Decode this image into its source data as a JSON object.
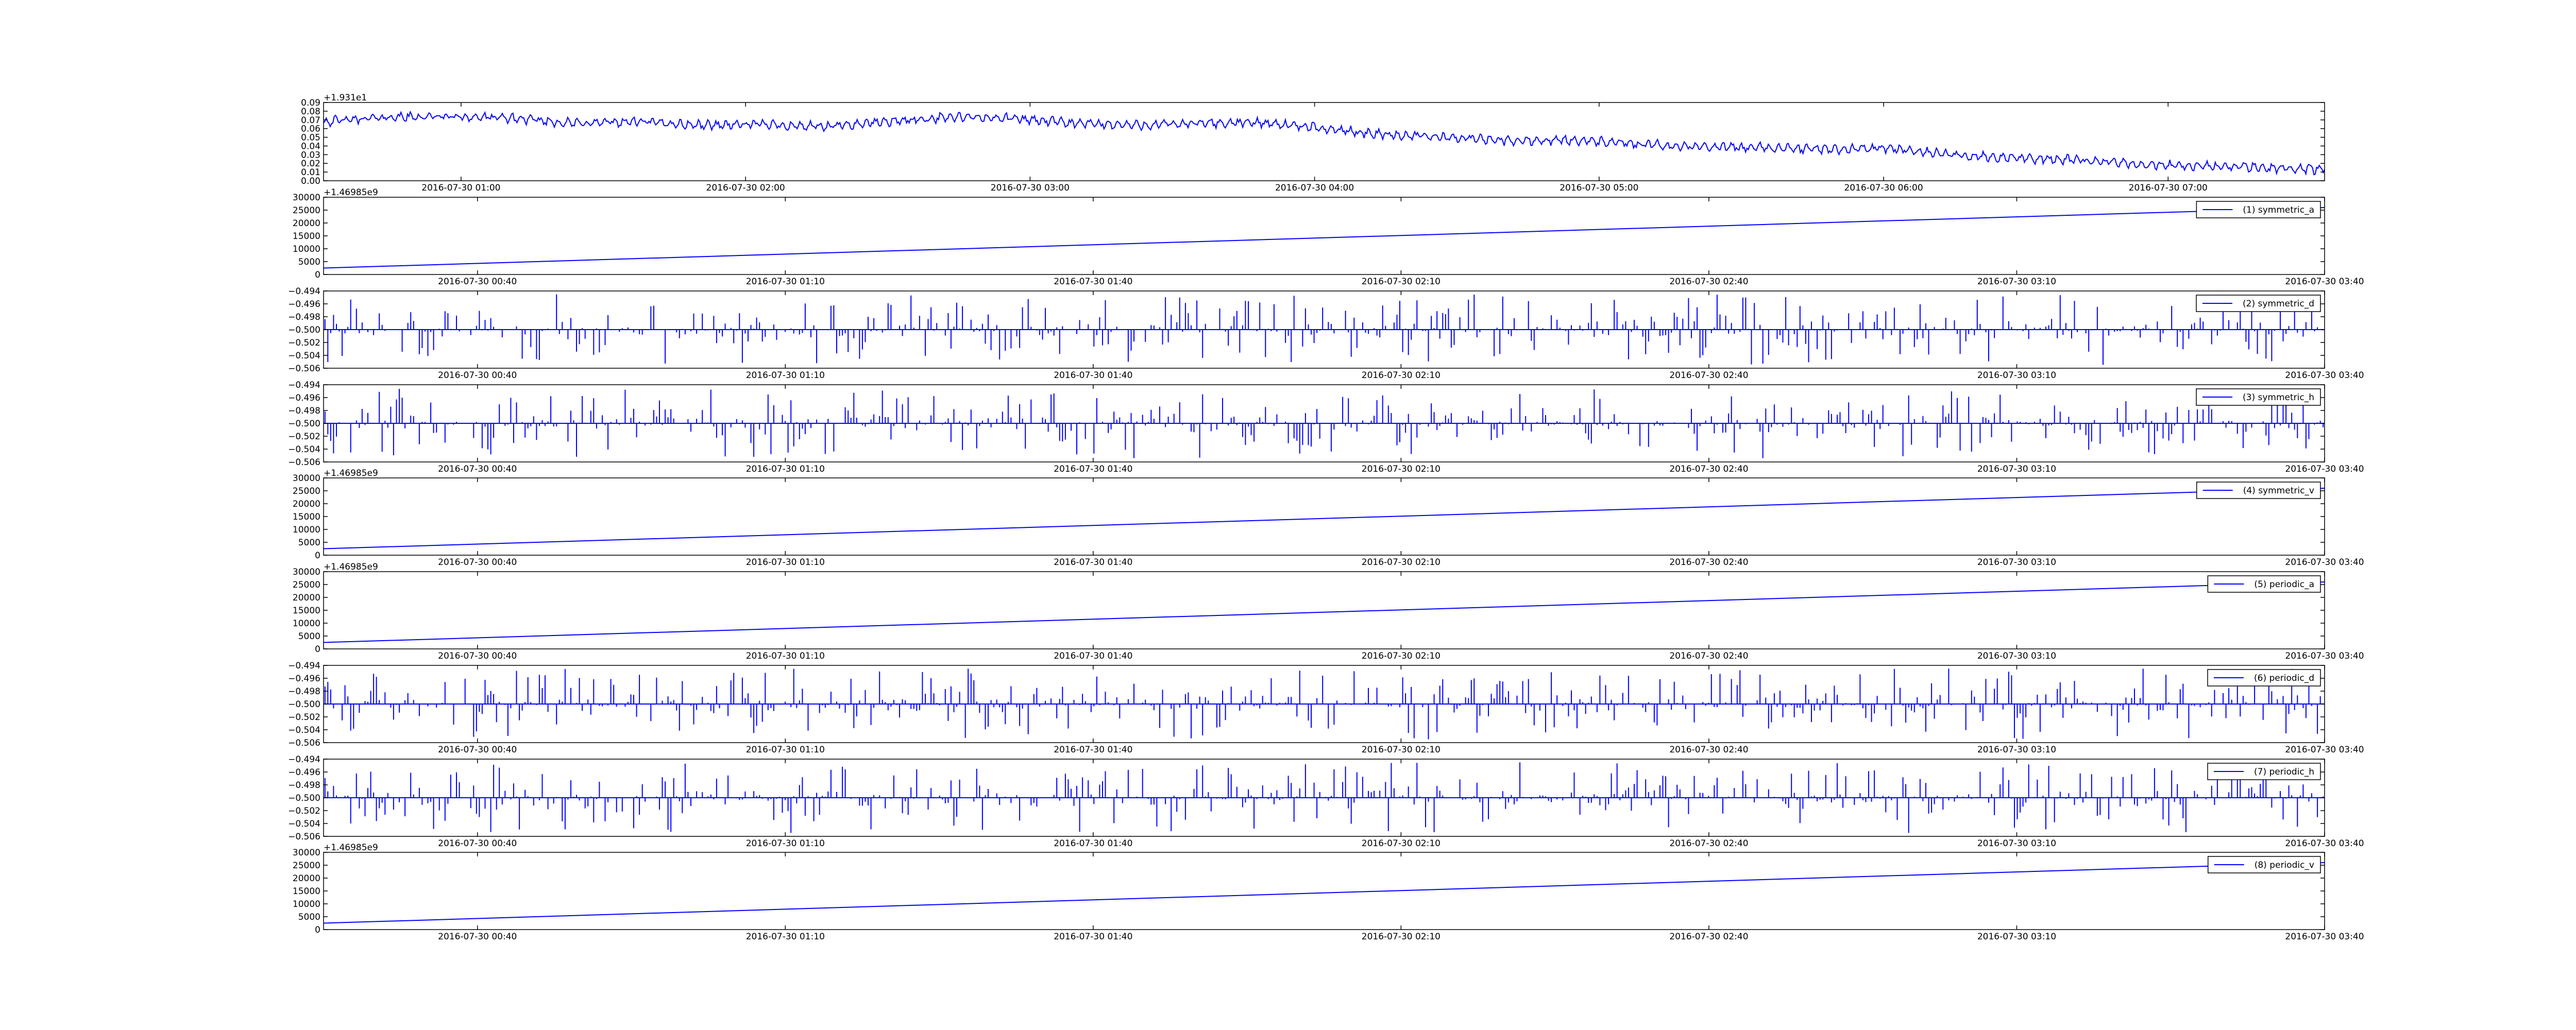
{
  "figure": {
    "background": "#ffffff",
    "line_color": "#0000ff",
    "axes_color": "#000000",
    "legend_border": "#000000"
  },
  "chart_data": [
    {
      "type": "line",
      "title": "",
      "xlabel": "",
      "ylabel": "",
      "offset_text": "+1.931e1",
      "x_range": [
        "2016-07-30 00:31",
        "2016-07-30 07:33"
      ],
      "xticks": [
        "2016-07-30 01:00",
        "2016-07-30 02:00",
        "2016-07-30 03:00",
        "2016-07-30 04:00",
        "2016-07-30 05:00",
        "2016-07-30 06:00",
        "2016-07-30 07:00"
      ],
      "ylim": [
        0.0,
        0.09
      ],
      "yticks": [
        "0.00",
        "0.01",
        "0.02",
        "0.03",
        "0.04",
        "0.05",
        "0.06",
        "0.07",
        "0.08",
        "0.09"
      ],
      "grid": false,
      "series": [
        {
          "values": [
            0.068,
            0.073,
            0.074,
            0.072,
            0.066,
            0.068,
            0.064,
            0.065,
            0.062,
            0.068,
            0.073,
            0.072,
            0.066,
            0.064,
            0.066,
            0.067,
            0.06,
            0.053,
            0.05,
            0.046,
            0.047,
            0.042,
            0.039,
            0.038,
            0.036,
            0.038,
            0.03,
            0.026,
            0.024,
            0.019,
            0.017,
            0.015,
            0.013
          ]
        }
      ]
    },
    {
      "type": "line",
      "title": "",
      "offset_text": "+1.46985e9",
      "x_range": [
        "2016-07-30 00:25",
        "2016-07-30 03:40"
      ],
      "xticks": [
        "2016-07-30 00:40",
        "2016-07-30 01:10",
        "2016-07-30 01:40",
        "2016-07-30 02:10",
        "2016-07-30 02:40",
        "2016-07-30 03:10",
        "2016-07-30 03:40"
      ],
      "ylim": [
        0,
        30000
      ],
      "yticks": [
        "0",
        "5000",
        "10000",
        "15000",
        "20000",
        "25000",
        "30000"
      ],
      "legend_position": "upper right",
      "grid": false,
      "series": [
        {
          "name": "(1) symmetric_a",
          "values": [
            2500,
            26000
          ]
        }
      ]
    },
    {
      "type": "line",
      "title": "",
      "x_range": [
        "2016-07-30 00:25",
        "2016-07-30 03:40"
      ],
      "xticks": [
        "2016-07-30 00:40",
        "2016-07-30 01:10",
        "2016-07-30 01:40",
        "2016-07-30 02:10",
        "2016-07-30 02:40",
        "2016-07-30 03:10",
        "2016-07-30 03:40"
      ],
      "ylim": [
        -0.506,
        -0.494
      ],
      "yticks": [
        "-0.494",
        "-0.496",
        "-0.498",
        "-0.500",
        "-0.502",
        "-0.504",
        "-0.506"
      ],
      "baseline": -0.5,
      "legend_position": "upper right",
      "grid": false,
      "series": [
        {
          "name": "(2) symmetric_d",
          "baseline": -0.5,
          "values": []
        }
      ]
    },
    {
      "type": "line",
      "title": "",
      "x_range": [
        "2016-07-30 00:25",
        "2016-07-30 03:40"
      ],
      "xticks": [
        "2016-07-30 00:40",
        "2016-07-30 01:10",
        "2016-07-30 01:40",
        "2016-07-30 02:10",
        "2016-07-30 02:40",
        "2016-07-30 03:10",
        "2016-07-30 03:40"
      ],
      "ylim": [
        -0.506,
        -0.494
      ],
      "yticks": [
        "-0.494",
        "-0.496",
        "-0.498",
        "-0.500",
        "-0.502",
        "-0.504",
        "-0.506"
      ],
      "baseline": -0.5,
      "legend_position": "upper right",
      "grid": false,
      "series": [
        {
          "name": "(3) symmetric_h",
          "baseline": -0.5,
          "values": []
        }
      ]
    },
    {
      "type": "line",
      "title": "",
      "offset_text": "+1.46985e9",
      "x_range": [
        "2016-07-30 00:25",
        "2016-07-30 03:40"
      ],
      "xticks": [
        "2016-07-30 00:40",
        "2016-07-30 01:10",
        "2016-07-30 01:40",
        "2016-07-30 02:10",
        "2016-07-30 02:40",
        "2016-07-30 03:10",
        "2016-07-30 03:40"
      ],
      "ylim": [
        0,
        30000
      ],
      "yticks": [
        "0",
        "5000",
        "10000",
        "15000",
        "20000",
        "25000",
        "30000"
      ],
      "legend_position": "upper right",
      "grid": false,
      "series": [
        {
          "name": "(4) symmetric_v",
          "values": [
            2500,
            26000
          ]
        }
      ]
    },
    {
      "type": "line",
      "title": "",
      "offset_text": "+1.46985e9",
      "x_range": [
        "2016-07-30 00:25",
        "2016-07-30 03:40"
      ],
      "xticks": [
        "2016-07-30 00:40",
        "2016-07-30 01:10",
        "2016-07-30 01:40",
        "2016-07-30 02:10",
        "2016-07-30 02:40",
        "2016-07-30 03:10",
        "2016-07-30 03:40"
      ],
      "ylim": [
        0,
        30000
      ],
      "yticks": [
        "0",
        "5000",
        "10000",
        "15000",
        "20000",
        "25000",
        "30000"
      ],
      "legend_position": "upper right",
      "grid": false,
      "series": [
        {
          "name": "(5) periodic_a",
          "values": [
            2500,
            26000
          ]
        }
      ]
    },
    {
      "type": "line",
      "title": "",
      "x_range": [
        "2016-07-30 00:25",
        "2016-07-30 03:40"
      ],
      "xticks": [
        "2016-07-30 00:40",
        "2016-07-30 01:10",
        "2016-07-30 01:40",
        "2016-07-30 02:10",
        "2016-07-30 02:40",
        "2016-07-30 03:10",
        "2016-07-30 03:40"
      ],
      "ylim": [
        -0.506,
        -0.494
      ],
      "yticks": [
        "-0.494",
        "-0.496",
        "-0.498",
        "-0.500",
        "-0.502",
        "-0.504",
        "-0.506"
      ],
      "baseline": -0.5,
      "legend_position": "upper right",
      "grid": false,
      "series": [
        {
          "name": "(6) periodic_d",
          "baseline": -0.5,
          "values": []
        }
      ]
    },
    {
      "type": "line",
      "title": "",
      "x_range": [
        "2016-07-30 00:25",
        "2016-07-30 03:40"
      ],
      "xticks": [
        "2016-07-30 00:40",
        "2016-07-30 01:10",
        "2016-07-30 01:40",
        "2016-07-30 02:10",
        "2016-07-30 02:40",
        "2016-07-30 03:10",
        "2016-07-30 03:40"
      ],
      "ylim": [
        -0.506,
        -0.494
      ],
      "yticks": [
        "-0.494",
        "-0.496",
        "-0.498",
        "-0.500",
        "-0.502",
        "-0.504",
        "-0.506"
      ],
      "baseline": -0.5,
      "legend_position": "upper right",
      "grid": false,
      "series": [
        {
          "name": "(7) periodic_h",
          "baseline": -0.5,
          "values": []
        }
      ]
    },
    {
      "type": "line",
      "title": "",
      "offset_text": "+1.46985e9",
      "x_range": [
        "2016-07-30 00:25",
        "2016-07-30 03:40"
      ],
      "xticks": [
        "2016-07-30 00:40",
        "2016-07-30 01:10",
        "2016-07-30 01:40",
        "2016-07-30 02:10",
        "2016-07-30 02:40",
        "2016-07-30 03:10",
        "2016-07-30 03:40"
      ],
      "ylim": [
        0,
        30000
      ],
      "yticks": [
        "0",
        "5000",
        "10000",
        "15000",
        "20000",
        "25000",
        "30000"
      ],
      "legend_position": "upper right",
      "grid": false,
      "series": [
        {
          "name": "(8) periodic_v",
          "values": [
            2500,
            26000
          ]
        }
      ]
    }
  ]
}
